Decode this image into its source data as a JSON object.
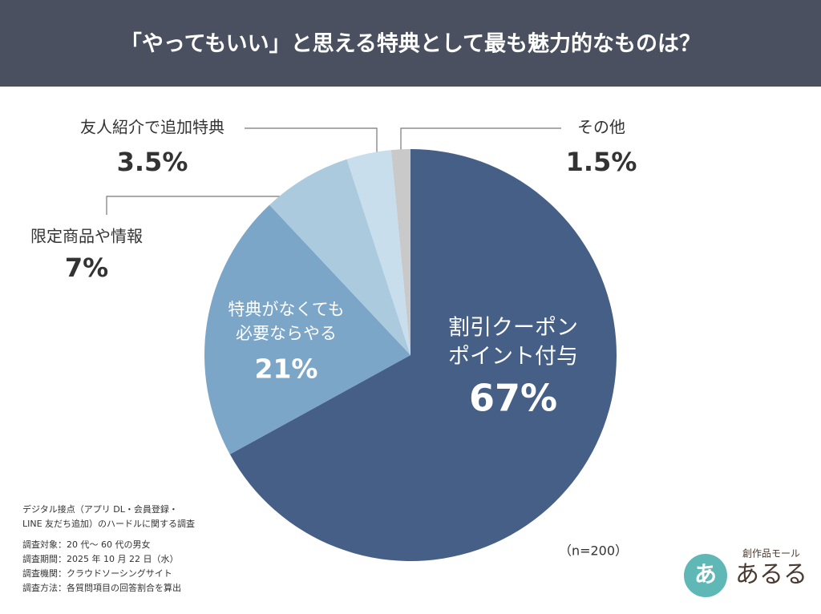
{
  "chart_data": {
    "type": "pie",
    "title": "「やってもいい」と思える特典として最も魅力的なものは？",
    "categories": [
      [
        "割引クーポン",
        "ポイント付与"
      ],
      [
        "特典がなくても",
        "必要ならやる"
      ],
      [
        "限定商品や情報"
      ],
      [
        "友人紹介で追加特典"
      ],
      [
        "その他"
      ]
    ],
    "values": [
      67,
      21,
      7,
      3.5,
      1.5
    ],
    "value_labels": [
      "67%",
      "21%",
      "7%",
      "3.5%",
      "1.5%"
    ],
    "colors": [
      "#465f87",
      "#7ba6c8",
      "#abcadd",
      "#c8deec",
      "#c9c9c9"
    ],
    "sample_note": "（n=200）",
    "notes": [
      "デジタル接点（アプリ DL・会員登録・",
      "LINE 友だち追加）のハードルに関する調査",
      "調査対象：20 代〜 60 代の男女",
      "調査期間：2025 年 10 月 22 日（水）",
      "調査機関：クラウドソーシングサイト",
      "調査方法：各質問項目の回答割合を算出"
    ]
  },
  "logo": {
    "tagline": "創作品モール",
    "name": "あるる",
    "mark": "あ"
  }
}
